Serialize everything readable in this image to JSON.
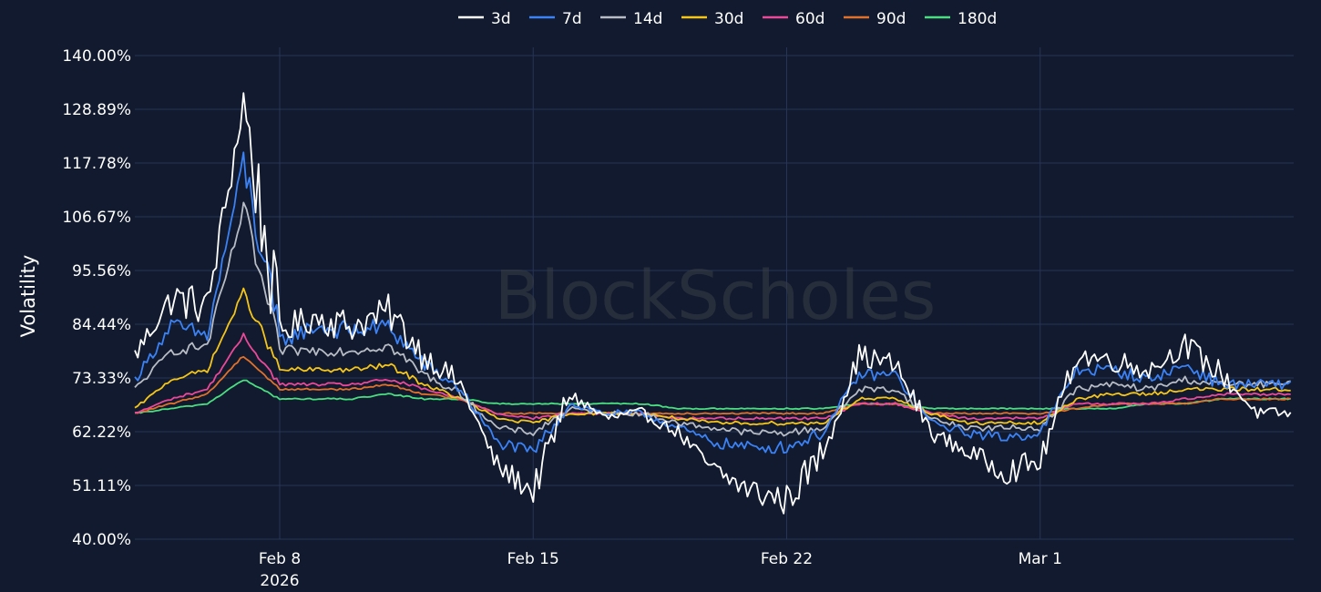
{
  "chart_data": {
    "type": "line",
    "watermark": "BlockScholes",
    "ylabel": "Volatility",
    "xlabel": "",
    "ylim": [
      40,
      140
    ],
    "yticks": [
      40.0,
      51.11,
      62.22,
      73.33,
      84.44,
      95.56,
      106.67,
      117.78,
      128.89,
      140.0
    ],
    "ytick_labels": [
      "40.00%",
      "51.11%",
      "62.22%",
      "73.33%",
      "84.44%",
      "95.56%",
      "106.67%",
      "117.78%",
      "128.89%",
      "140.00%"
    ],
    "xlim": [
      "2026-02-04T00:00",
      "2026-03-08T00:00"
    ],
    "xticks": [
      {
        "date": "2026-02-08",
        "label": "Feb 8",
        "sublabel": "2026"
      },
      {
        "date": "2026-02-15",
        "label": "Feb 15",
        "sublabel": ""
      },
      {
        "date": "2026-02-22",
        "label": "Feb 22",
        "sublabel": ""
      },
      {
        "date": "2026-03-01",
        "label": "Mar 1",
        "sublabel": ""
      }
    ],
    "grid": true,
    "legend_position": "top-center",
    "x": [
      "2026-02-04",
      "2026-02-05",
      "2026-02-06",
      "2026-02-07",
      "2026-02-08",
      "2026-02-09",
      "2026-02-10",
      "2026-02-11",
      "2026-02-12",
      "2026-02-13",
      "2026-02-14",
      "2026-02-15",
      "2026-02-16",
      "2026-02-17",
      "2026-02-18",
      "2026-02-19",
      "2026-02-20",
      "2026-02-21",
      "2026-02-22",
      "2026-02-23",
      "2026-02-24",
      "2026-02-25",
      "2026-02-26",
      "2026-02-27",
      "2026-02-28",
      "2026-03-01",
      "2026-03-02",
      "2026-03-03",
      "2026-03-04",
      "2026-03-05",
      "2026-03-06",
      "2026-03-07"
    ],
    "series": [
      {
        "name": "3d",
        "color": "#ffffff",
        "values": [
          78,
          90,
          88,
          130,
          83,
          86,
          84,
          87,
          78,
          72,
          55,
          50,
          70,
          65,
          66,
          62,
          54,
          50,
          48,
          58,
          78,
          76,
          62,
          58,
          54,
          56,
          78,
          77,
          75,
          80,
          74,
          66
        ]
      },
      {
        "name": "7d",
        "color": "#3b82f6",
        "values": [
          73,
          84,
          82,
          118,
          81,
          84,
          83,
          84,
          76,
          71,
          60,
          58,
          68,
          66,
          66,
          63,
          60,
          59,
          59,
          62,
          74,
          74,
          64,
          62,
          61,
          62,
          75,
          75,
          73,
          76,
          72,
          72
        ]
      },
      {
        "name": "14d",
        "color": "#b8bcc4",
        "values": [
          71,
          79,
          80,
          108,
          79,
          79,
          79,
          80,
          74,
          70,
          63,
          62,
          67,
          66,
          66,
          64,
          63,
          62,
          62,
          63,
          71,
          71,
          65,
          63,
          63,
          63,
          71,
          72,
          71,
          73,
          72,
          72
        ]
      },
      {
        "name": "30d",
        "color": "#f5c518",
        "values": [
          67,
          73,
          75,
          91,
          75,
          75,
          75,
          76,
          72,
          69,
          65,
          64,
          66,
          66,
          66,
          65,
          64,
          64,
          64,
          64,
          69,
          69,
          66,
          64,
          64,
          64,
          69,
          70,
          70,
          71,
          71,
          71
        ]
      },
      {
        "name": "60d",
        "color": "#ec4899",
        "values": [
          66,
          69,
          71,
          82,
          72,
          72,
          72,
          73,
          71,
          69,
          66,
          65,
          66,
          66,
          66,
          65,
          65,
          65,
          65,
          65,
          68,
          68,
          66,
          65,
          65,
          65,
          68,
          68,
          68,
          69,
          70,
          70
        ]
      },
      {
        "name": "90d",
        "color": "#e0702a",
        "values": [
          66,
          68,
          70,
          78,
          71,
          71,
          71,
          72,
          70,
          69,
          66,
          66,
          66,
          66,
          66,
          66,
          66,
          66,
          66,
          66,
          68,
          68,
          66,
          66,
          66,
          66,
          67,
          68,
          68,
          68,
          69,
          69
        ]
      },
      {
        "name": "180d",
        "color": "#4ade80",
        "values": [
          66,
          67,
          68,
          73,
          69,
          69,
          69,
          70,
          69,
          69,
          68,
          68,
          68,
          68,
          68,
          67,
          67,
          67,
          67,
          67,
          68,
          68,
          67,
          67,
          67,
          67,
          67,
          67,
          68,
          68,
          69,
          69
        ]
      }
    ]
  },
  "colors": {
    "background": "#111a2e",
    "grid": "#263556",
    "text": "#ffffff"
  }
}
